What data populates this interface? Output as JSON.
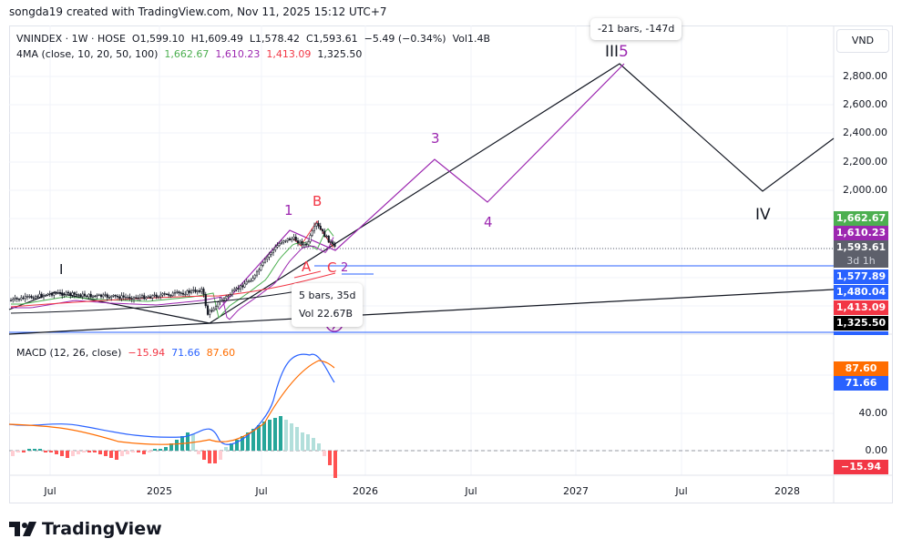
{
  "credit": "songda19 created with TradingView.com, Nov 11, 2025 15:12 UTC+7",
  "symbol": {
    "name": "VNINDEX · 1W · HOSE",
    "open": "O1,599.10",
    "high": "H1,609.49",
    "low": "L1,578.42",
    "close": "C1,593.61",
    "change": "−5.49 (−0.34%)",
    "volume": "Vol1.4B"
  },
  "ma": {
    "label": "4MA (close, 10, 20, 50, 100)",
    "v10": "1,662.67",
    "v20": "1,610.23",
    "v50": "1,413.09",
    "v100": "1,325.50",
    "colors": {
      "v10": "#4caf50",
      "v20": "#9c27b0",
      "v50": "#f23645",
      "v100": "#131722"
    }
  },
  "currency_button": "VND",
  "price_axis": [
    "2,800.00",
    "2,600.00",
    "2,400.00",
    "2,200.00",
    "2,000.00"
  ],
  "price_tags": [
    {
      "value": "1,662.67",
      "color": "#4caf50"
    },
    {
      "value": "1,610.23",
      "color": "#9c27b0"
    },
    {
      "value": "1,593.61",
      "sub": "3d 1h",
      "color": "#5d606b"
    },
    {
      "value": "1,577.89",
      "color": "#2962ff"
    },
    {
      "value": "1,480.04",
      "color": "#2962ff"
    },
    {
      "value": "1,413.09",
      "color": "#f23645"
    },
    {
      "value": "1,325.50",
      "color": "#000000"
    }
  ],
  "waves": {
    "I": "I",
    "one": "1",
    "B": "B",
    "A": "A",
    "C": "C",
    "two": "2",
    "three": "3",
    "four": "4",
    "III": "III",
    "five": "5",
    "IV": "IV"
  },
  "tooltips": {
    "range_bars": "5 bars, 35d",
    "range_vol": "Vol 22.67B",
    "top_range": "-21 bars, -147d"
  },
  "macd": {
    "label": "MACD (12, 26, close)",
    "hist": "−15.94",
    "macd": "71.66",
    "signal": "87.60",
    "axis": [
      "40.00",
      "0.00"
    ],
    "tags": [
      {
        "value": "87.60",
        "color": "#ff6d00"
      },
      {
        "value": "71.66",
        "color": "#2962ff"
      },
      {
        "value": "−15.94",
        "color": "#f23645"
      }
    ]
  },
  "time_axis": [
    "Jul",
    "2025",
    "Jul",
    "2026",
    "Jul",
    "2027",
    "Jul",
    "2028"
  ],
  "logo": "TradingView"
}
